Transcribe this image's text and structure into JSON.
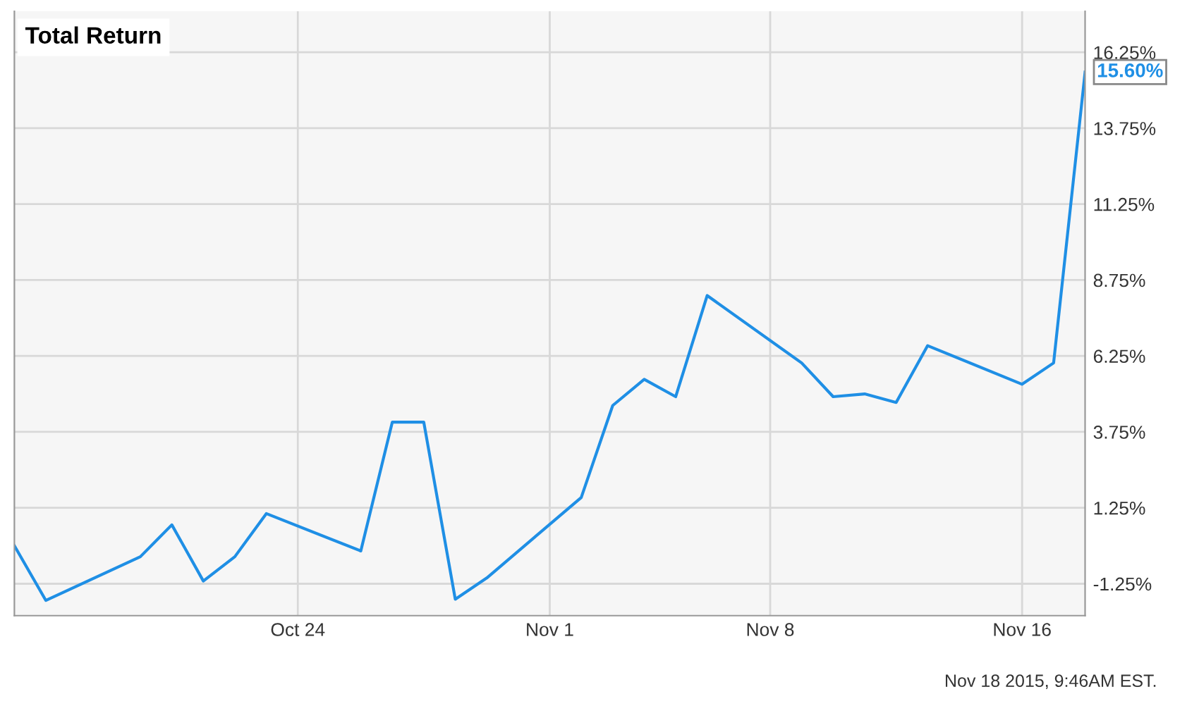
{
  "chart_data": {
    "type": "line",
    "title": "Total Return",
    "x": [
      "2015-10-15",
      "2015-10-16",
      "2015-10-19",
      "2015-10-20",
      "2015-10-21",
      "2015-10-22",
      "2015-10-23",
      "2015-10-26",
      "2015-10-27",
      "2015-10-28",
      "2015-10-29",
      "2015-10-30",
      "2015-11-02",
      "2015-11-03",
      "2015-11-04",
      "2015-11-05",
      "2015-11-06",
      "2015-11-09",
      "2015-11-10",
      "2015-11-11",
      "2015-11-12",
      "2015-11-13",
      "2015-11-16",
      "2015-11-17",
      "2015-11-18"
    ],
    "series": [
      {
        "color": "#1f8fe5",
        "values": [
          0.0,
          -1.8,
          -0.36,
          0.69,
          -1.16,
          -0.36,
          1.06,
          -0.17,
          4.07,
          4.07,
          -1.76,
          -1.06,
          1.59,
          4.62,
          5.48,
          4.91,
          8.24,
          6.02,
          4.91,
          5.0,
          4.72,
          6.59,
          5.32,
          6.02,
          15.6
        ],
        "value_labels": [
          null,
          null,
          null,
          null,
          null,
          null,
          null,
          null,
          null,
          null,
          null,
          null,
          null,
          null,
          null,
          null,
          null,
          null,
          null,
          null,
          null,
          null,
          null,
          null,
          "15.60%"
        ]
      }
    ],
    "xlim": [
      "2015-10-15",
      "2015-11-18"
    ],
    "xticks": [
      {
        "value": "2015-10-24",
        "label": "Oct 24"
      },
      {
        "value": "2015-11-01",
        "label": "Nov 1"
      },
      {
        "value": "2015-11-08",
        "label": "Nov 8"
      },
      {
        "value": "2015-11-16",
        "label": "Nov 16"
      }
    ],
    "ylim": [
      -2.3,
      17.6
    ],
    "yticks": [
      {
        "value": -1.25,
        "label": "-1.25%"
      },
      {
        "value": 1.25,
        "label": "1.25%"
      },
      {
        "value": 3.75,
        "label": "3.75%"
      },
      {
        "value": 6.25,
        "label": "6.25%"
      },
      {
        "value": 8.75,
        "label": "8.75%"
      },
      {
        "value": 11.25,
        "label": "11.25%"
      },
      {
        "value": 13.75,
        "label": "13.75%"
      },
      {
        "value": 16.25,
        "label": "16.25%"
      }
    ],
    "grid": true,
    "legend": false,
    "marker": "none",
    "line_style": "solid",
    "annotations": [
      "Nov 18 2015, 9:46AM EST."
    ]
  }
}
